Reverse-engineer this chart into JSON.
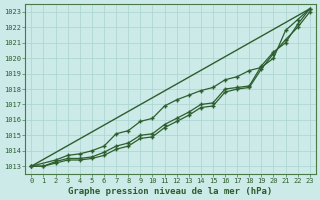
{
  "xlabel": "Graphe pression niveau de la mer (hPa)",
  "bg_color": "#cceae8",
  "grid_color": "#aad4d0",
  "line_color": "#2d5e2d",
  "spine_color": "#4a7a4a",
  "xlim_min": -0.5,
  "xlim_max": 23.5,
  "ylim_min": 1012.5,
  "ylim_max": 1023.5,
  "yticks": [
    1013,
    1014,
    1015,
    1016,
    1017,
    1018,
    1019,
    1020,
    1021,
    1022,
    1023
  ],
  "xticks": [
    0,
    1,
    2,
    3,
    4,
    5,
    6,
    7,
    8,
    9,
    10,
    11,
    12,
    13,
    14,
    15,
    16,
    17,
    18,
    19,
    20,
    21,
    22,
    23
  ],
  "ref_line": [
    [
      0,
      23
    ],
    [
      1013.0,
      1023.2
    ]
  ],
  "line1_x": [
    0,
    1,
    2,
    3,
    4,
    5,
    6,
    7,
    8,
    9,
    10,
    11,
    12,
    13,
    14,
    15,
    16,
    17,
    18,
    19,
    20,
    21,
    22,
    23
  ],
  "line1_y": [
    1013.0,
    1013.0,
    1013.3,
    1013.5,
    1013.5,
    1013.6,
    1013.9,
    1014.3,
    1014.5,
    1015.0,
    1015.1,
    1015.7,
    1016.1,
    1016.5,
    1017.0,
    1017.1,
    1018.0,
    1018.1,
    1018.2,
    1019.5,
    1020.4,
    1021.0,
    1022.2,
    1023.2
  ],
  "line2_x": [
    0,
    1,
    2,
    3,
    4,
    5,
    6,
    7,
    8,
    9,
    10,
    11,
    12,
    13,
    14,
    15,
    16,
    17,
    18,
    19,
    20,
    21,
    22,
    23
  ],
  "line2_y": [
    1013.0,
    1013.0,
    1013.2,
    1013.4,
    1013.4,
    1013.5,
    1013.7,
    1014.1,
    1014.3,
    1014.8,
    1014.9,
    1015.5,
    1015.9,
    1016.3,
    1016.8,
    1016.9,
    1017.8,
    1018.0,
    1018.1,
    1019.3,
    1020.3,
    1021.2,
    1022.0,
    1023.0
  ],
  "line3_x": [
    0,
    2,
    3,
    4,
    5,
    6,
    7,
    8,
    9,
    10,
    11,
    12,
    13,
    14,
    15,
    16,
    17,
    18,
    19,
    20,
    21,
    22,
    23
  ],
  "line3_y": [
    1013.0,
    1013.4,
    1013.7,
    1013.8,
    1014.0,
    1014.3,
    1015.1,
    1015.3,
    1015.9,
    1016.1,
    1016.9,
    1017.3,
    1017.6,
    1017.9,
    1018.1,
    1018.6,
    1018.8,
    1019.2,
    1019.4,
    1020.0,
    1021.8,
    1022.5,
    1023.2
  ],
  "xlabel_fontsize": 6.5,
  "tick_labelsize": 5.0
}
